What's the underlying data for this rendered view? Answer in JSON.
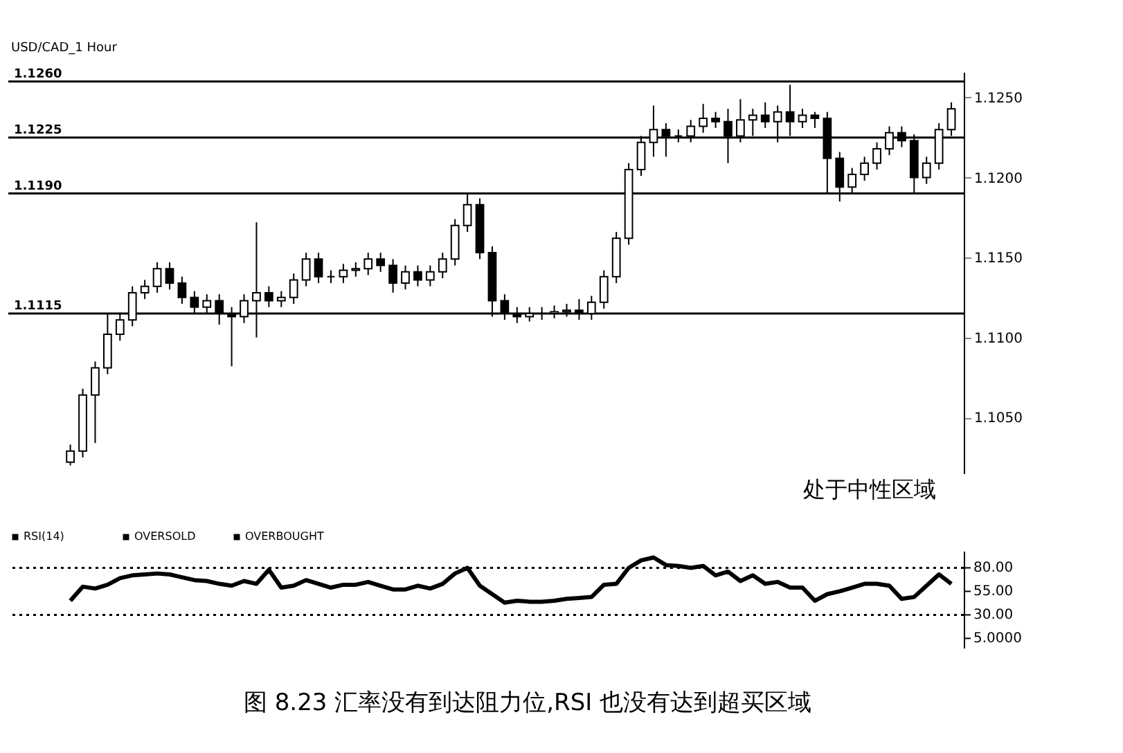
{
  "chart_data": [
    {
      "type": "candlestick",
      "title": "USD/CAD_1 Hour",
      "categories": [
        null,
        null,
        null,
        null,
        null,
        null,
        null,
        null,
        null,
        null,
        null,
        null,
        null,
        null,
        null,
        null,
        null,
        null,
        null,
        null,
        null,
        null,
        null,
        null,
        null,
        null,
        null,
        null,
        null,
        null,
        null,
        null,
        null,
        null,
        null,
        null,
        null,
        null,
        null,
        null,
        null,
        null,
        null,
        null,
        null,
        null,
        null,
        null,
        null,
        null,
        null,
        null,
        null,
        null,
        null,
        null,
        null,
        null,
        null,
        null,
        null,
        null,
        null,
        null,
        null,
        null,
        null,
        null,
        null,
        null,
        null,
        null
      ],
      "series": [
        {
          "color": "#000000",
          "ohlc": [
            [
              1.1022,
              1.1033,
              1.102,
              1.1029
            ],
            [
              1.1029,
              1.1068,
              1.1025,
              1.1064
            ],
            [
              1.1064,
              1.1085,
              1.1034,
              1.1081
            ],
            [
              1.1081,
              1.1115,
              1.1077,
              1.1102
            ],
            [
              1.1102,
              1.1115,
              1.1098,
              1.1111
            ],
            [
              1.1111,
              1.1132,
              1.1107,
              1.1128
            ],
            [
              1.1128,
              1.1136,
              1.1124,
              1.1132
            ],
            [
              1.1132,
              1.1147,
              1.1128,
              1.1143
            ],
            [
              1.1143,
              1.1147,
              1.113,
              1.1134
            ],
            [
              1.1134,
              1.1138,
              1.1121,
              1.1125
            ],
            [
              1.1125,
              1.1129,
              1.1115,
              1.1119
            ],
            [
              1.1119,
              1.1127,
              1.1115,
              1.1123
            ],
            [
              1.1123,
              1.1127,
              1.1108,
              1.1115
            ],
            [
              1.1115,
              1.1119,
              1.1082,
              1.1113
            ],
            [
              1.1113,
              1.1127,
              1.1109,
              1.1123
            ],
            [
              1.1123,
              1.1172,
              1.11,
              1.1128
            ],
            [
              1.1128,
              1.1132,
              1.1119,
              1.1123
            ],
            [
              1.1123,
              1.1129,
              1.1119,
              1.1125
            ],
            [
              1.1125,
              1.114,
              1.1121,
              1.1136
            ],
            [
              1.1136,
              1.1153,
              1.1132,
              1.1149
            ],
            [
              1.1149,
              1.1153,
              1.1134,
              1.1138
            ],
            [
              1.1138,
              1.1142,
              1.1134,
              1.1138
            ],
            [
              1.1138,
              1.1146,
              1.1134,
              1.1142
            ],
            [
              1.1142,
              1.1147,
              1.1138,
              1.1143
            ],
            [
              1.1143,
              1.1153,
              1.1139,
              1.1149
            ],
            [
              1.1149,
              1.1153,
              1.1141,
              1.1145
            ],
            [
              1.1145,
              1.1149,
              1.1128,
              1.1134
            ],
            [
              1.1134,
              1.1145,
              1.113,
              1.1141
            ],
            [
              1.1141,
              1.1145,
              1.1132,
              1.1136
            ],
            [
              1.1136,
              1.1145,
              1.1132,
              1.1141
            ],
            [
              1.1141,
              1.1153,
              1.1137,
              1.1149
            ],
            [
              1.1149,
              1.1174,
              1.1145,
              1.117
            ],
            [
              1.117,
              1.119,
              1.1166,
              1.1183
            ],
            [
              1.1183,
              1.1187,
              1.1149,
              1.1153
            ],
            [
              1.1153,
              1.1157,
              1.1113,
              1.1123
            ],
            [
              1.1123,
              1.1127,
              1.1111,
              1.1115
            ],
            [
              1.1115,
              1.1119,
              1.1109,
              1.1113
            ],
            [
              1.1113,
              1.1119,
              1.111,
              1.1115
            ],
            [
              1.1115,
              1.1119,
              1.1111,
              1.1115
            ],
            [
              1.1115,
              1.112,
              1.1112,
              1.1116
            ],
            [
              1.1116,
              1.1121,
              1.1113,
              1.1117
            ],
            [
              1.1117,
              1.1124,
              1.1111,
              1.1115
            ],
            [
              1.1115,
              1.1126,
              1.1111,
              1.1122
            ],
            [
              1.1122,
              1.1142,
              1.1118,
              1.1138
            ],
            [
              1.1138,
              1.1166,
              1.1134,
              1.1162
            ],
            [
              1.1162,
              1.1209,
              1.1158,
              1.1205
            ],
            [
              1.1205,
              1.1226,
              1.1201,
              1.1222
            ],
            [
              1.1222,
              1.1245,
              1.1213,
              1.123
            ],
            [
              1.123,
              1.1234,
              1.1213,
              1.1226
            ],
            [
              1.1226,
              1.123,
              1.1222,
              1.1226
            ],
            [
              1.1226,
              1.1236,
              1.1222,
              1.1232
            ],
            [
              1.1232,
              1.1246,
              1.1228,
              1.1237
            ],
            [
              1.1237,
              1.1241,
              1.1231,
              1.1235
            ],
            [
              1.1235,
              1.1243,
              1.1209,
              1.1226
            ],
            [
              1.1226,
              1.1249,
              1.1222,
              1.1236
            ],
            [
              1.1236,
              1.1243,
              1.1226,
              1.1239
            ],
            [
              1.1239,
              1.1247,
              1.1231,
              1.1235
            ],
            [
              1.1235,
              1.1245,
              1.1222,
              1.1241
            ],
            [
              1.1241,
              1.1258,
              1.1226,
              1.1235
            ],
            [
              1.1235,
              1.1243,
              1.1231,
              1.1239
            ],
            [
              1.1239,
              1.1241,
              1.1231,
              1.1237
            ],
            [
              1.1237,
              1.1241,
              1.119,
              1.1212
            ],
            [
              1.1212,
              1.1216,
              1.1185,
              1.1194
            ],
            [
              1.1194,
              1.1206,
              1.119,
              1.1202
            ],
            [
              1.1202,
              1.1213,
              1.1198,
              1.1209
            ],
            [
              1.1209,
              1.1222,
              1.1205,
              1.1218
            ],
            [
              1.1218,
              1.1232,
              1.1214,
              1.1228
            ],
            [
              1.1228,
              1.1232,
              1.1219,
              1.1223
            ],
            [
              1.1223,
              1.1227,
              1.119,
              1.12
            ],
            [
              1.12,
              1.1213,
              1.1196,
              1.1209
            ],
            [
              1.1209,
              1.1234,
              1.1205,
              1.123
            ],
            [
              1.123,
              1.1247,
              1.1226,
              1.1243
            ]
          ]
        }
      ],
      "ylim": [
        1.1015,
        1.1266
      ],
      "yticks": [
        {
          "value": 1.105,
          "label": "1.1050"
        },
        {
          "value": 1.11,
          "label": "1.1100"
        },
        {
          "value": 1.115,
          "label": "1.1150"
        },
        {
          "value": 1.12,
          "label": "1.1200"
        },
        {
          "value": 1.125,
          "label": "1.1250"
        }
      ],
      "ref_lines": [
        {
          "axis": "y",
          "value": 1.126,
          "label": "1.1260"
        },
        {
          "axis": "y",
          "value": 1.1225,
          "label": "1.1225"
        },
        {
          "axis": "y",
          "value": 1.119,
          "label": "1.1190"
        },
        {
          "axis": "y",
          "value": 1.1115,
          "label": "1.1115"
        }
      ],
      "annotations": [
        "处于中性区域"
      ],
      "grid": false,
      "tick_labels": "y"
    },
    {
      "type": "line",
      "categories": [
        null,
        null,
        null,
        null,
        null,
        null,
        null,
        null,
        null,
        null,
        null,
        null,
        null,
        null,
        null,
        null,
        null,
        null,
        null,
        null,
        null,
        null,
        null,
        null,
        null,
        null,
        null,
        null,
        null,
        null,
        null,
        null,
        null,
        null,
        null,
        null,
        null,
        null,
        null,
        null,
        null,
        null,
        null,
        null,
        null,
        null,
        null,
        null,
        null,
        null,
        null,
        null,
        null,
        null,
        null,
        null,
        null,
        null,
        null,
        null,
        null,
        null,
        null,
        null,
        null,
        null,
        null,
        null,
        null,
        null,
        null,
        null
      ],
      "series": [
        {
          "name": "RSI(14)",
          "color": "#000000",
          "values": [
            45,
            60,
            58,
            62,
            69,
            72,
            73,
            74,
            73,
            70,
            67,
            66,
            63,
            61,
            66,
            63,
            78,
            59,
            61,
            67,
            63,
            59,
            62,
            62,
            65,
            61,
            57,
            57,
            61,
            58,
            63,
            74,
            80,
            61,
            52,
            43,
            45,
            44,
            44,
            45,
            47,
            48,
            49,
            62,
            63,
            80,
            88,
            91,
            83,
            82,
            80,
            82,
            72,
            76,
            66,
            72,
            63,
            65,
            59,
            59,
            45,
            52,
            55,
            59,
            63,
            63,
            61,
            47,
            49,
            61,
            73,
            63
          ]
        }
      ],
      "ylim": [
        -5,
        98
      ],
      "yticks": [
        {
          "value": 80,
          "label": "80.00"
        },
        {
          "value": 55,
          "label": "55.00"
        },
        {
          "value": 30,
          "label": "30.00"
        },
        {
          "value": 5,
          "label": "5.0000"
        }
      ],
      "ref_lines": [
        {
          "axis": "y",
          "value": 30,
          "label": "OVERSOLD",
          "line_style": "dotted",
          "color": "#000000"
        },
        {
          "axis": "y",
          "value": 80,
          "label": "OVERBOUGHT",
          "line_style": "dotted",
          "color": "#000000"
        }
      ],
      "legend": "top left",
      "line_style": "solid",
      "marker": "none",
      "grid": false,
      "tick_labels": "y",
      "annotations": [
        "图 8.23    汇率没有到达阻力位,RSI 也没有达到超买区域"
      ]
    }
  ]
}
